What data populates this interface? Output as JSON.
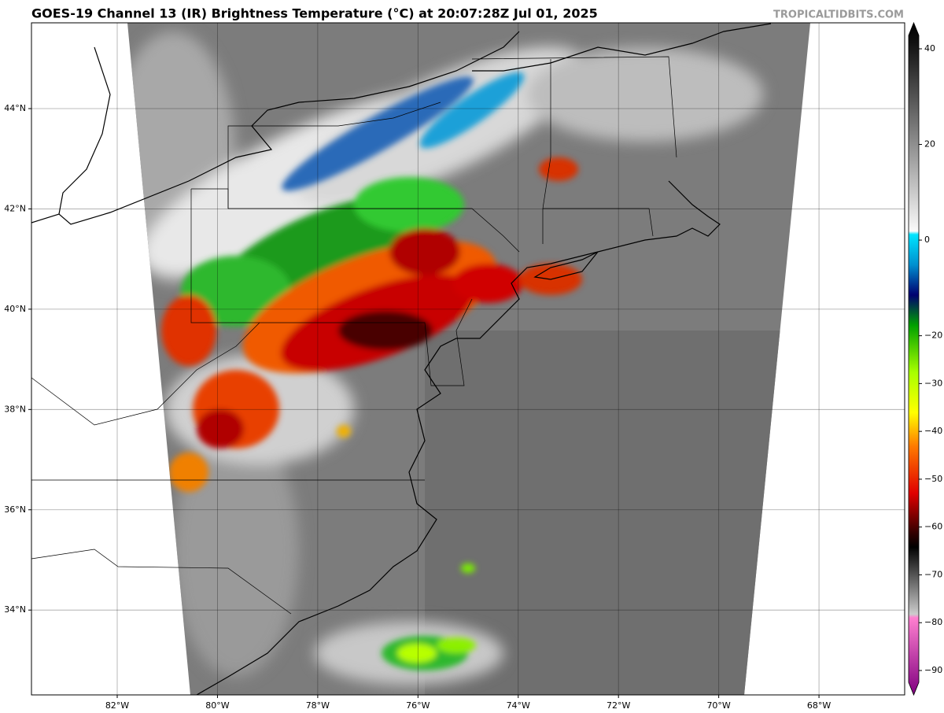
{
  "header": {
    "title": "GOES-19 Channel 13 (IR) Brightness Temperature (°C) at 20:07:28Z Jul 01, 2025",
    "credit": "TROPICALTIDBITS.COM"
  },
  "map": {
    "lat_labels": [
      {
        "value": 44,
        "label": "44°N"
      },
      {
        "value": 42,
        "label": "42°N"
      },
      {
        "value": 40,
        "label": "40°N"
      },
      {
        "value": 38,
        "label": "38°N"
      },
      {
        "value": 36,
        "label": "36°N"
      },
      {
        "value": 34,
        "label": "34°N"
      }
    ],
    "lon_labels": [
      {
        "value": -82,
        "label": "82°W"
      },
      {
        "value": -80,
        "label": "80°W"
      },
      {
        "value": -78,
        "label": "78°W"
      },
      {
        "value": -76,
        "label": "76°W"
      },
      {
        "value": -74,
        "label": "74°W"
      },
      {
        "value": -72,
        "label": "72°W"
      },
      {
        "value": -70,
        "label": "70°W"
      },
      {
        "value": -68,
        "label": "68°W"
      }
    ]
  },
  "colorbar": {
    "ticks": [
      40,
      20,
      0,
      {
        "value": -20,
        "label": "−20"
      },
      {
        "value": -30,
        "label": "−30"
      },
      {
        "value": -40,
        "label": "−40"
      },
      {
        "value": -50,
        "label": "−50"
      },
      {
        "value": -60,
        "label": "−60"
      },
      {
        "value": -70,
        "label": "−70"
      },
      {
        "value": -80,
        "label": "−80"
      },
      {
        "value": -90,
        "label": "−90"
      }
    ]
  }
}
